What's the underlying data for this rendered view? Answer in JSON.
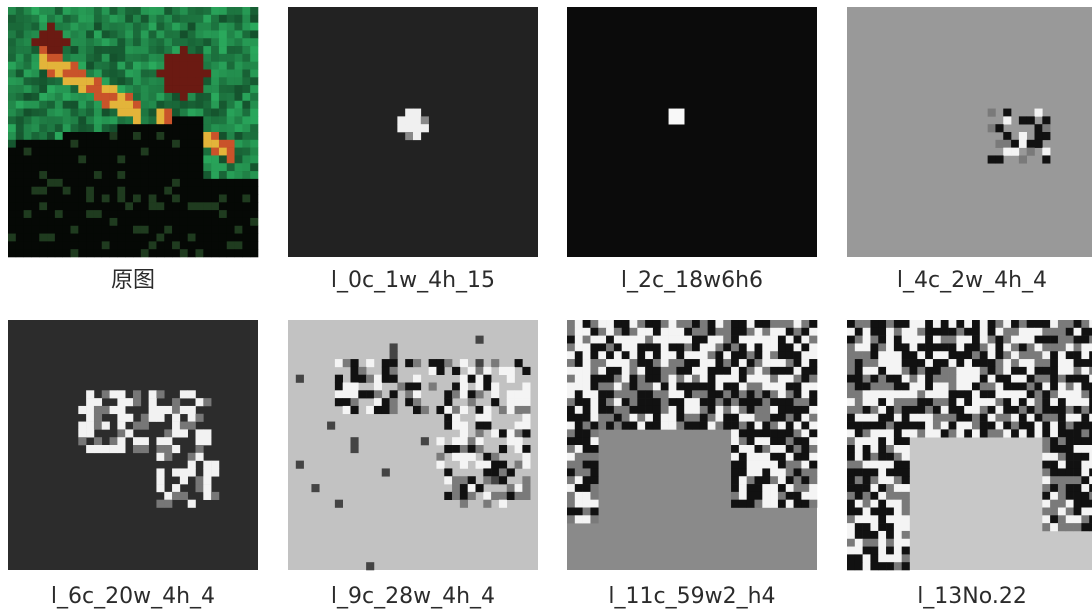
{
  "images": [
    {
      "caption": "原图"
    },
    {
      "caption": "l_0c_1w_4h_15"
    },
    {
      "caption": "l_2c_18w6h6"
    },
    {
      "caption": "l_4c_2w_4h_4"
    },
    {
      "caption": "l_6c_20w_4h_4"
    },
    {
      "caption": "l_9c_28w_4h_4"
    },
    {
      "caption": "l_11c_59w2_h4"
    },
    {
      "caption": "l_13No.22"
    }
  ]
}
